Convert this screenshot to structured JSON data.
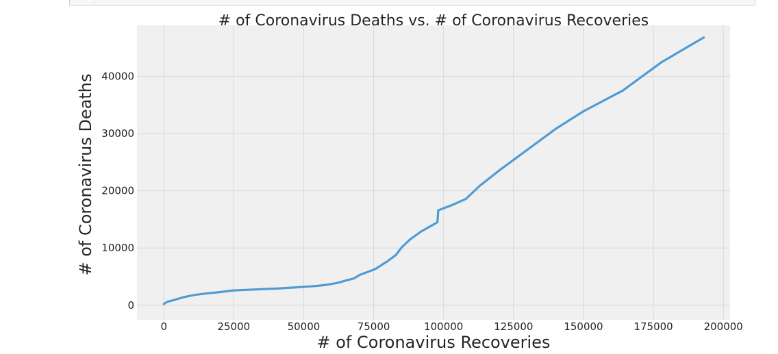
{
  "chart_data": {
    "type": "line",
    "title": "# of Coronavirus Deaths vs. # of Coronavirus Recoveries",
    "xlabel": "# of Coronavirus Recoveries",
    "ylabel": "# of Coronavirus Deaths",
    "xlim": [
      -9600,
      202400
    ],
    "ylim": [
      -2540,
      48920
    ],
    "xticks": [
      0,
      25000,
      50000,
      75000,
      100000,
      125000,
      150000,
      175000,
      200000
    ],
    "xtick_labels": [
      "0",
      "25000",
      "50000",
      "75000",
      "100000",
      "125000",
      "150000",
      "175000",
      "200000"
    ],
    "yticks": [
      0,
      10000,
      20000,
      30000,
      40000
    ],
    "ytick_labels": [
      "0",
      "10000",
      "20000",
      "30000",
      "40000"
    ],
    "grid": true,
    "legend": "none",
    "colors": {
      "line": "#4f9bd3",
      "plot_background": "#f0f0f0",
      "grid": "#d8d8d8"
    },
    "series": [
      {
        "x": [
          0,
          1200,
          3500,
          7000,
          11000,
          16000,
          20000,
          25000,
          30000,
          40000,
          50000,
          55000,
          58000,
          62000,
          65000,
          68000,
          70000,
          75500,
          80000,
          83000,
          85000,
          88000,
          92000,
          97800,
          98100,
          103000,
          108000,
          113000,
          120000,
          130000,
          140000,
          150000,
          164000,
          178000,
          193000
        ],
        "y": [
          200,
          600,
          900,
          1400,
          1800,
          2100,
          2300,
          2600,
          2700,
          2900,
          3200,
          3400,
          3550,
          3900,
          4300,
          4700,
          5300,
          6300,
          7700,
          8800,
          10100,
          11500,
          12900,
          14500,
          16600,
          17500,
          18600,
          20900,
          23600,
          27200,
          30800,
          33900,
          37500,
          42500,
          46800
        ]
      }
    ]
  }
}
